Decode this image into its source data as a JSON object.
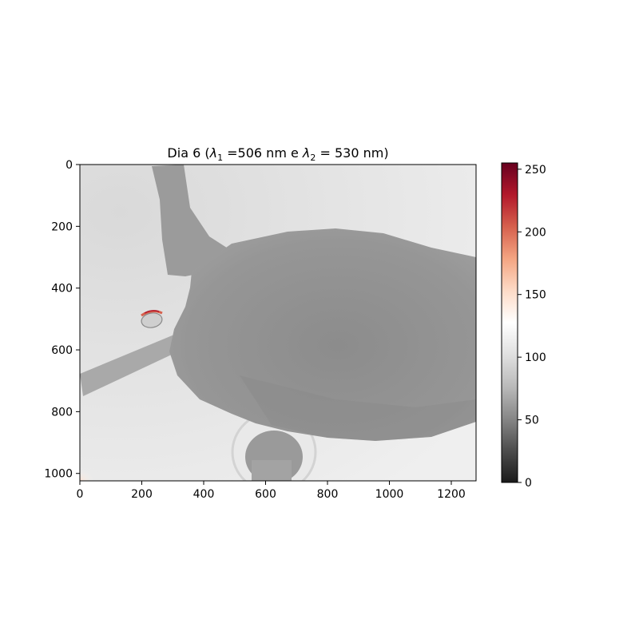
{
  "chart_data": {
    "type": "heatmap",
    "title": {
      "prefix": "Dia 6 (",
      "lambda1_symbol": "λ",
      "lambda1_sub": "1",
      "lambda1_rest": " =506 nm e ",
      "lambda2_symbol": "λ",
      "lambda2_sub": "2",
      "lambda2_rest": " = 530 nm)"
    },
    "xlabel": "",
    "ylabel": "",
    "x_range": [
      0,
      1280
    ],
    "y_range": [
      1024,
      0
    ],
    "x_ticks": [
      0,
      200,
      400,
      600,
      800,
      1000,
      1200
    ],
    "y_ticks": [
      0,
      200,
      400,
      600,
      800,
      1000
    ],
    "colorbar": {
      "range": [
        0,
        255
      ],
      "ticks": [
        0,
        50,
        100,
        150,
        200,
        250
      ],
      "colormap": "RdGy_r",
      "stops": [
        "#1a1a1a",
        "#4d4d4d",
        "#878787",
        "#bababa",
        "#e0e0e0",
        "#ffffff",
        "#fddbc7",
        "#f4a582",
        "#d6604d",
        "#b2182b",
        "#67001f"
      ]
    },
    "image": {
      "background_value": 96,
      "subject": "grayscale image of a small animal body in the frame",
      "regions": [
        {
          "name": "body",
          "value": 62
        },
        {
          "name": "hind-leg",
          "value": 66
        },
        {
          "name": "tail",
          "value": 70
        },
        {
          "name": "well-dark-spot",
          "value": 58
        },
        {
          "name": "bright-hotspot",
          "value": 215
        }
      ]
    }
  }
}
